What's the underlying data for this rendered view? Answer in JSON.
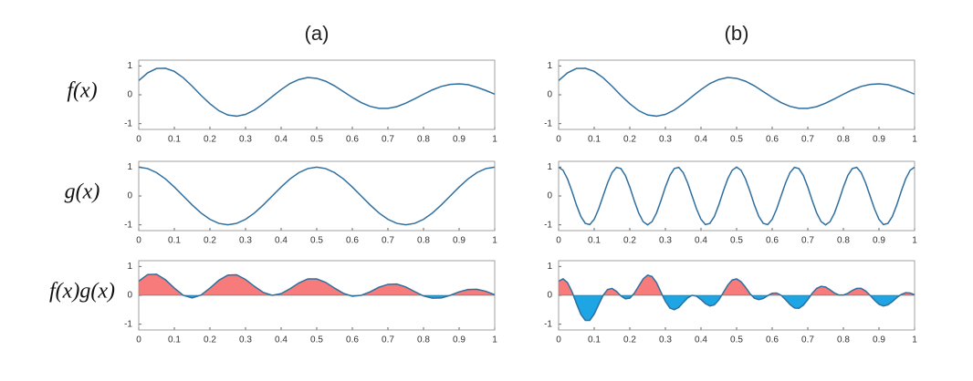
{
  "chart_data": [
    {
      "type": "line",
      "title": "(a)",
      "ylabel": "f(x)",
      "color": "#2f6f9f",
      "x": [
        0,
        0.025,
        0.05,
        0.075,
        0.1,
        0.125,
        0.15,
        0.175,
        0.2,
        0.225,
        0.25,
        0.275,
        0.3,
        0.325,
        0.35,
        0.375,
        0.4,
        0.425,
        0.45,
        0.475,
        0.5,
        0.525,
        0.55,
        0.575,
        0.6,
        0.625,
        0.65,
        0.675,
        0.7,
        0.725,
        0.75,
        0.775,
        0.8,
        0.825,
        0.85,
        0.875,
        0.9,
        0.925,
        0.95,
        0.975,
        1
      ],
      "values": [
        0.49,
        0.76,
        0.91,
        0.92,
        0.81,
        0.59,
        0.3,
        -0.02,
        -0.31,
        -0.55,
        -0.7,
        -0.74,
        -0.68,
        -0.53,
        -0.31,
        -0.06,
        0.18,
        0.39,
        0.53,
        0.6,
        0.57,
        0.47,
        0.31,
        0.11,
        -0.09,
        -0.27,
        -0.4,
        -0.47,
        -0.47,
        -0.41,
        -0.29,
        -0.14,
        0.02,
        0.17,
        0.29,
        0.36,
        0.38,
        0.35,
        0.26,
        0.15,
        0.02
      ],
      "xlim": [
        0,
        1
      ],
      "ylim": [
        -1.2,
        1.2
      ],
      "xticks": [
        0,
        0.1,
        0.2,
        0.3,
        0.4,
        0.5,
        0.6,
        0.7,
        0.8,
        0.9,
        1
      ],
      "yticks": [
        -1,
        0,
        1
      ]
    },
    {
      "type": "line",
      "ylabel": "g(x)",
      "color": "#2f6f9f",
      "x": [
        0,
        0.025,
        0.05,
        0.075,
        0.1,
        0.125,
        0.15,
        0.175,
        0.2,
        0.225,
        0.25,
        0.275,
        0.3,
        0.325,
        0.35,
        0.375,
        0.4,
        0.425,
        0.45,
        0.475,
        0.5,
        0.525,
        0.55,
        0.575,
        0.6,
        0.625,
        0.65,
        0.675,
        0.7,
        0.725,
        0.75,
        0.775,
        0.8,
        0.825,
        0.85,
        0.875,
        0.9,
        0.925,
        0.95,
        0.975,
        1
      ],
      "values": [
        1,
        0.95,
        0.81,
        0.59,
        0.31,
        0,
        -0.31,
        -0.59,
        -0.81,
        -0.95,
        -1,
        -0.95,
        -0.81,
        -0.59,
        -0.31,
        0,
        0.31,
        0.59,
        0.81,
        0.95,
        1,
        0.95,
        0.81,
        0.59,
        0.31,
        0,
        -0.31,
        -0.59,
        -0.81,
        -0.95,
        -1,
        -0.95,
        -0.81,
        -0.59,
        -0.31,
        0,
        0.31,
        0.59,
        0.81,
        0.95,
        1
      ],
      "xlim": [
        0,
        1
      ],
      "ylim": [
        -1.2,
        1.2
      ],
      "xticks": [
        0,
        0.1,
        0.2,
        0.3,
        0.4,
        0.5,
        0.6,
        0.7,
        0.8,
        0.9,
        1
      ],
      "yticks": [
        -1,
        0,
        1
      ]
    },
    {
      "type": "area",
      "ylabel": "f(x)g(x)",
      "color": "#2f6f9f",
      "positive_color": "#f77b7b",
      "negative_color": "#1ea5e3",
      "x": [
        0,
        0.025,
        0.05,
        0.075,
        0.1,
        0.125,
        0.15,
        0.175,
        0.2,
        0.225,
        0.25,
        0.275,
        0.3,
        0.325,
        0.35,
        0.375,
        0.4,
        0.425,
        0.45,
        0.475,
        0.5,
        0.525,
        0.55,
        0.575,
        0.6,
        0.625,
        0.65,
        0.675,
        0.7,
        0.725,
        0.75,
        0.775,
        0.8,
        0.825,
        0.85,
        0.875,
        0.9,
        0.925,
        0.95,
        0.975,
        1
      ],
      "values": [
        0.49,
        0.72,
        0.73,
        0.54,
        0.25,
        0,
        -0.09,
        0.01,
        0.25,
        0.52,
        0.7,
        0.71,
        0.55,
        0.31,
        0.1,
        0,
        0.06,
        0.23,
        0.43,
        0.57,
        0.57,
        0.45,
        0.25,
        0.07,
        -0.03,
        0,
        0.12,
        0.28,
        0.38,
        0.39,
        0.29,
        0.13,
        -0.02,
        -0.1,
        -0.09,
        0,
        0.12,
        0.2,
        0.21,
        0.14,
        0.02
      ],
      "xlim": [
        0,
        1
      ],
      "ylim": [
        -1.2,
        1.2
      ],
      "xticks": [
        0,
        0.1,
        0.2,
        0.3,
        0.4,
        0.5,
        0.6,
        0.7,
        0.8,
        0.9,
        1
      ],
      "yticks": [
        -1,
        0,
        1
      ]
    },
    {
      "type": "line",
      "title": "(b)",
      "color": "#2f6f9f",
      "x": [
        0,
        0.025,
        0.05,
        0.075,
        0.1,
        0.125,
        0.15,
        0.175,
        0.2,
        0.225,
        0.25,
        0.275,
        0.3,
        0.325,
        0.35,
        0.375,
        0.4,
        0.425,
        0.45,
        0.475,
        0.5,
        0.525,
        0.55,
        0.575,
        0.6,
        0.625,
        0.65,
        0.675,
        0.7,
        0.725,
        0.75,
        0.775,
        0.8,
        0.825,
        0.85,
        0.875,
        0.9,
        0.925,
        0.95,
        0.975,
        1
      ],
      "values": [
        0.49,
        0.76,
        0.91,
        0.92,
        0.81,
        0.59,
        0.3,
        -0.02,
        -0.31,
        -0.55,
        -0.7,
        -0.74,
        -0.68,
        -0.53,
        -0.31,
        -0.06,
        0.18,
        0.39,
        0.53,
        0.6,
        0.57,
        0.47,
        0.31,
        0.11,
        -0.09,
        -0.27,
        -0.4,
        -0.47,
        -0.47,
        -0.41,
        -0.29,
        -0.14,
        0.02,
        0.17,
        0.29,
        0.36,
        0.38,
        0.35,
        0.26,
        0.15,
        0.02
      ],
      "xlim": [
        0,
        1
      ],
      "ylim": [
        -1.2,
        1.2
      ],
      "xticks": [
        0,
        0.1,
        0.2,
        0.3,
        0.4,
        0.5,
        0.6,
        0.7,
        0.8,
        0.9,
        1
      ],
      "yticks": [
        -1,
        0,
        1
      ]
    },
    {
      "type": "line",
      "color": "#2f6f9f",
      "x": [
        0,
        0.0125,
        0.025,
        0.0375,
        0.05,
        0.0625,
        0.075,
        0.0875,
        0.1,
        0.1125,
        0.125,
        0.1375,
        0.15,
        0.1625,
        0.175,
        0.1875,
        0.2,
        0.2125,
        0.225,
        0.2375,
        0.25,
        0.2625,
        0.275,
        0.2875,
        0.3,
        0.3125,
        0.325,
        0.3375,
        0.35,
        0.3625,
        0.375,
        0.3875,
        0.4,
        0.4125,
        0.425,
        0.4375,
        0.45,
        0.4625,
        0.475,
        0.4875,
        0.5,
        0.5125,
        0.525,
        0.5375,
        0.55,
        0.5625,
        0.575,
        0.5875,
        0.6,
        0.6125,
        0.625,
        0.6375,
        0.65,
        0.6625,
        0.675,
        0.6875,
        0.7,
        0.7125,
        0.725,
        0.7375,
        0.75,
        0.7625,
        0.775,
        0.7875,
        0.8,
        0.8125,
        0.825,
        0.8375,
        0.85,
        0.8625,
        0.875,
        0.8875,
        0.9,
        0.9125,
        0.925,
        0.9375,
        0.95,
        0.9625,
        0.975,
        0.9875,
        1
      ],
      "values": [
        1,
        0.89,
        0.59,
        0.16,
        -0.31,
        -0.71,
        -0.95,
        -0.99,
        -0.81,
        -0.45,
        0,
        0.45,
        0.81,
        0.99,
        0.95,
        0.71,
        0.31,
        -0.16,
        -0.59,
        -0.89,
        -1,
        -0.89,
        -0.59,
        -0.16,
        0.31,
        0.71,
        0.95,
        0.99,
        0.81,
        0.45,
        0,
        -0.45,
        -0.81,
        -0.99,
        -0.95,
        -0.71,
        -0.31,
        0.16,
        0.59,
        0.89,
        1,
        0.89,
        0.59,
        0.16,
        -0.31,
        -0.71,
        -0.95,
        -0.99,
        -0.81,
        -0.45,
        0,
        0.45,
        0.81,
        0.99,
        0.95,
        0.71,
        0.31,
        -0.16,
        -0.59,
        -0.89,
        -1,
        -0.89,
        -0.59,
        -0.16,
        0.31,
        0.71,
        0.95,
        0.99,
        0.81,
        0.45,
        0,
        -0.45,
        -0.81,
        -0.99,
        -0.95,
        -0.71,
        -0.31,
        0.16,
        0.59,
        0.89,
        1
      ],
      "xlim": [
        0,
        1
      ],
      "ylim": [
        -1.2,
        1.2
      ],
      "xticks": [
        0,
        0.1,
        0.2,
        0.3,
        0.4,
        0.5,
        0.6,
        0.7,
        0.8,
        0.9,
        1
      ],
      "yticks": [
        -1,
        0,
        1
      ]
    },
    {
      "type": "area",
      "color": "#2f6f9f",
      "positive_color": "#f77b7b",
      "negative_color": "#1ea5e3",
      "x": [
        0,
        0.0125,
        0.025,
        0.0375,
        0.05,
        0.0625,
        0.075,
        0.0875,
        0.1,
        0.1125,
        0.125,
        0.1375,
        0.15,
        0.1625,
        0.175,
        0.1875,
        0.2,
        0.2125,
        0.225,
        0.2375,
        0.25,
        0.2625,
        0.275,
        0.2875,
        0.3,
        0.3125,
        0.325,
        0.3375,
        0.35,
        0.3625,
        0.375,
        0.3875,
        0.4,
        0.4125,
        0.425,
        0.4375,
        0.45,
        0.4625,
        0.475,
        0.4875,
        0.5,
        0.5125,
        0.525,
        0.5375,
        0.55,
        0.5625,
        0.575,
        0.5875,
        0.6,
        0.6125,
        0.625,
        0.6375,
        0.65,
        0.6625,
        0.675,
        0.6875,
        0.7,
        0.7125,
        0.725,
        0.7375,
        0.75,
        0.7625,
        0.775,
        0.7875,
        0.8,
        0.8125,
        0.825,
        0.8375,
        0.85,
        0.8625,
        0.875,
        0.8875,
        0.9,
        0.9125,
        0.925,
        0.9375,
        0.95,
        0.9625,
        0.975,
        0.9875,
        1
      ],
      "values": [
        0.49,
        0.57,
        0.44,
        0.13,
        -0.28,
        -0.66,
        -0.87,
        -0.87,
        -0.65,
        -0.32,
        0,
        0.2,
        0.24,
        0.14,
        -0.02,
        -0.12,
        -0.1,
        0.07,
        0.32,
        0.57,
        0.7,
        0.65,
        0.44,
        0.11,
        -0.21,
        -0.44,
        -0.5,
        -0.42,
        -0.25,
        -0.09,
        0,
        -0.03,
        -0.15,
        -0.29,
        -0.37,
        -0.33,
        -0.16,
        0.09,
        0.35,
        0.53,
        0.57,
        0.47,
        0.28,
        0.06,
        -0.1,
        -0.15,
        -0.11,
        -0.01,
        0.07,
        0.08,
        0,
        -0.15,
        -0.32,
        -0.44,
        -0.45,
        -0.34,
        -0.15,
        0.07,
        0.24,
        0.31,
        0.29,
        0.19,
        0.08,
        0.01,
        0.01,
        0.07,
        0.17,
        0.24,
        0.24,
        0.15,
        0,
        -0.17,
        -0.31,
        -0.37,
        -0.33,
        -0.22,
        -0.08,
        0.03,
        0.09,
        0.08,
        0.02
      ],
      "xlim": [
        0,
        1
      ],
      "ylim": [
        -1.2,
        1.2
      ],
      "xticks": [
        0,
        0.1,
        0.2,
        0.3,
        0.4,
        0.5,
        0.6,
        0.7,
        0.8,
        0.9,
        1
      ],
      "yticks": [
        -1,
        0,
        1
      ]
    }
  ]
}
